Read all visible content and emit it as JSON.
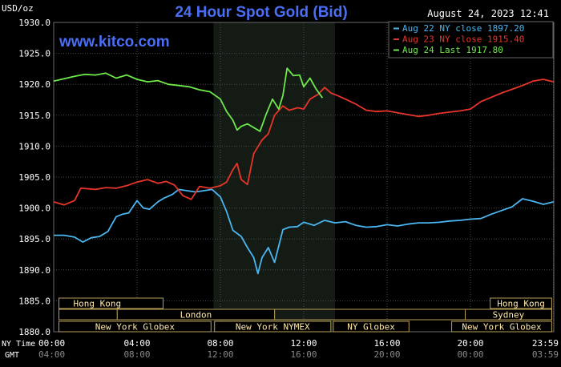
{
  "header": {
    "title": "24 Hour Spot Gold (Bid)",
    "timestamp": "August 24, 2023 12:41",
    "website": "www.kitco.com",
    "unit_label": "USD/oz"
  },
  "colors": {
    "background": "#000000",
    "plot_bg": "#000000",
    "shade": "#141a14",
    "grid": "#4a4a4a",
    "axis_text": "#ffffff",
    "title": "#4a6ef5",
    "website": "#4a6ef5",
    "session_box_bg": "#000000",
    "session_box_border": "#b59d58",
    "session_text": "#ffe9a8"
  },
  "chart_data": {
    "type": "line",
    "title": "24 Hour Spot Gold (Bid)",
    "ylim": [
      1880.0,
      1930.0
    ],
    "y_ticks": [
      "1880.0",
      "1885.0",
      "1890.0",
      "1895.0",
      "1900.0",
      "1905.0",
      "1910.0",
      "1915.0",
      "1920.0",
      "1925.0",
      "1930.0"
    ],
    "x_ticks_ny": [
      "00:00",
      "04:00",
      "08:00",
      "12:00",
      "16:00",
      "20:00",
      "23:59"
    ],
    "x_ticks_gmt": [
      "04:00",
      "08:00",
      "12:00",
      "16:00",
      "20:00",
      "00:00",
      "03:59"
    ],
    "x_axis_labels": {
      "ny": "NY Time",
      "gmt": "GMT"
    },
    "nymex_window_hours": [
      7.67,
      13.5
    ],
    "legend": {
      "placement": "top-right"
    },
    "series": [
      {
        "name": "Aug 22 NY close 1897.20",
        "color": "#4ab6f0",
        "x": [
          0,
          0.5,
          1,
          1.4,
          1.8,
          2.2,
          2.6,
          3,
          3.3,
          3.6,
          4,
          4.3,
          4.6,
          5,
          5.3,
          5.7,
          6,
          6.4,
          6.8,
          7.2,
          7.6,
          8,
          8.3,
          8.6,
          9,
          9.3,
          9.6,
          9.8,
          10,
          10.3,
          10.6,
          11,
          11.3,
          11.7,
          12,
          12.5,
          13,
          13.5,
          14,
          14.5,
          15,
          15.5,
          16,
          16.5,
          17,
          17.5,
          18,
          18.5,
          19,
          19.5,
          20,
          20.5,
          21,
          21.5,
          22,
          22.5,
          23,
          23.5,
          23.98
        ],
        "y": [
          1895.6,
          1895.6,
          1895.3,
          1894.5,
          1895.2,
          1895.4,
          1896.2,
          1898.6,
          1899.0,
          1899.2,
          1901.2,
          1900.0,
          1899.8,
          1901.0,
          1901.6,
          1902.2,
          1903.0,
          1902.8,
          1902.6,
          1902.8,
          1903.0,
          1901.8,
          1899.4,
          1896.4,
          1895.4,
          1893.6,
          1892.0,
          1889.4,
          1892.0,
          1893.6,
          1891.2,
          1896.5,
          1896.9,
          1897.0,
          1897.7,
          1897.2,
          1898.0,
          1897.6,
          1897.8,
          1897.2,
          1896.9,
          1897.0,
          1897.3,
          1897.1,
          1897.4,
          1897.6,
          1897.6,
          1897.7,
          1897.9,
          1898.0,
          1898.2,
          1898.3,
          1899.0,
          1899.6,
          1900.2,
          1901.5,
          1901.1,
          1900.6,
          1901.0
        ]
      },
      {
        "name": "Aug 23 NY close 1915.40",
        "color": "#e8352a",
        "x": [
          0,
          0.5,
          1,
          1.3,
          1.7,
          2,
          2.5,
          3,
          3.5,
          4,
          4.5,
          5,
          5.4,
          5.8,
          6.2,
          6.6,
          7,
          7.5,
          8,
          8.3,
          8.6,
          8.8,
          9,
          9.3,
          9.6,
          10,
          10.3,
          10.6,
          11,
          11.3,
          11.7,
          12,
          12.3,
          12.7,
          13,
          13.3,
          13.6,
          14,
          14.5,
          15,
          15.5,
          16,
          16.5,
          17,
          17.5,
          18,
          18.5,
          19,
          19.5,
          20,
          20.5,
          21,
          21.5,
          22,
          22.5,
          23,
          23.5,
          23.98
        ],
        "y": [
          1901.0,
          1900.5,
          1901.2,
          1903.2,
          1903.1,
          1903.0,
          1903.3,
          1903.2,
          1903.6,
          1904.2,
          1904.6,
          1904.0,
          1904.3,
          1903.7,
          1902.0,
          1901.4,
          1903.5,
          1903.2,
          1903.6,
          1904.2,
          1906.2,
          1907.2,
          1904.6,
          1903.8,
          1908.8,
          1911.0,
          1912.0,
          1915.0,
          1916.5,
          1915.8,
          1916.2,
          1916.0,
          1917.6,
          1918.4,
          1919.5,
          1918.6,
          1918.2,
          1917.6,
          1916.8,
          1915.8,
          1915.6,
          1915.7,
          1915.4,
          1915.1,
          1914.8,
          1915.0,
          1915.3,
          1915.5,
          1915.7,
          1916.0,
          1917.2,
          1917.9,
          1918.6,
          1919.2,
          1919.8,
          1920.5,
          1920.8,
          1920.4
        ]
      },
      {
        "name": "Aug 24 Last 1917.80",
        "color": "#6ee84a",
        "x": [
          0,
          0.5,
          1,
          1.5,
          2,
          2.5,
          3,
          3.5,
          4,
          4.5,
          5,
          5.5,
          6,
          6.5,
          7,
          7.5,
          8,
          8.3,
          8.6,
          8.8,
          9,
          9.3,
          9.6,
          9.9,
          10.2,
          10.5,
          10.8,
          11,
          11.2,
          11.5,
          11.8,
          12,
          12.3,
          12.6,
          12.9
        ],
        "y": [
          1920.5,
          1920.9,
          1921.3,
          1921.6,
          1921.5,
          1921.8,
          1921.0,
          1921.5,
          1920.8,
          1920.4,
          1920.6,
          1920.0,
          1919.8,
          1919.6,
          1919.1,
          1918.8,
          1917.6,
          1915.6,
          1914.2,
          1912.6,
          1913.2,
          1913.6,
          1913.0,
          1912.4,
          1915.2,
          1917.6,
          1916.0,
          1918.2,
          1922.6,
          1921.4,
          1921.5,
          1919.6,
          1921.0,
          1919.2,
          1917.8
        ]
      }
    ]
  },
  "sessions": [
    {
      "label": "Hong Kong",
      "row": 0,
      "start": 0.25,
      "end": 5.25
    },
    {
      "label": "Hong Kong",
      "row": 0,
      "start": 20.95,
      "end": 23.9
    },
    {
      "label": "London",
      "row": 1,
      "start": 3.05,
      "end": 10.6
    },
    {
      "label": "Sydney",
      "row": 1,
      "start": 19.75,
      "end": 23.9
    },
    {
      "label": "New York Globex",
      "row": 2,
      "start": 0.25,
      "end": 7.55
    },
    {
      "label": "New York NYMEX",
      "row": 2,
      "start": 7.72,
      "end": 13.3
    },
    {
      "label": "NY Globex",
      "row": 2,
      "start": 13.42,
      "end": 17.05
    },
    {
      "label": "New York Globex",
      "row": 2,
      "start": 19.1,
      "end": 23.9
    }
  ],
  "session_bracket_segments": [
    {
      "row": 1,
      "start": 0.25,
      "end": 3.05
    },
    {
      "row": 1,
      "start": 10.6,
      "end": 23.9
    }
  ]
}
